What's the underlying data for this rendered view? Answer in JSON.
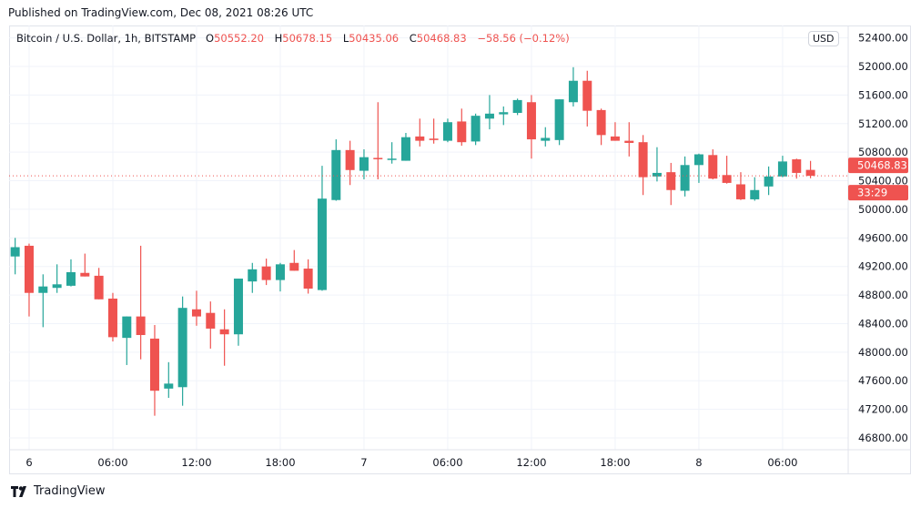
{
  "header": {
    "published": "Published on TradingView.com, Dec 08, 2021 08:26 UTC"
  },
  "legend": {
    "symbol": "Bitcoin / U.S. Dollar, 1h, BITSTAMP",
    "o_label": "O",
    "o": "50552.20",
    "h_label": "H",
    "h": "50678.15",
    "l_label": "L",
    "l": "50435.06",
    "c_label": "C",
    "c": "50468.83",
    "change": "−58.56 (−0.12%)"
  },
  "currency_badge": "USD",
  "last_price": {
    "value": "50468.83",
    "countdown": "33:29"
  },
  "footer": {
    "brand": "TradingView"
  },
  "colors": {
    "up": "#26a69a",
    "down": "#ef5350",
    "grid": "#f0f3fa",
    "text": "#131722"
  },
  "chart_data": {
    "type": "candlestick",
    "interval": "1h",
    "start": "2021-12-05T23:00:00Z",
    "xlim": [
      "2021-12-05T22:34:00Z",
      "2021-12-08T10:42:00Z"
    ],
    "ylim": [
      46634,
      52574
    ],
    "grid": true,
    "y_ticks": [
      "52400.00",
      "52000.00",
      "51600.00",
      "51200.00",
      "50800.00",
      "50400.00",
      "50000.00",
      "49600.00",
      "49200.00",
      "48800.00",
      "48400.00",
      "48000.00",
      "47600.00",
      "47200.00",
      "46800.00"
    ],
    "x_ticks": [
      {
        "label": "6",
        "time": "2021-12-06T00:00:00Z"
      },
      {
        "label": "06:00",
        "time": "2021-12-06T06:00:00Z"
      },
      {
        "label": "12:00",
        "time": "2021-12-06T12:00:00Z"
      },
      {
        "label": "18:00",
        "time": "2021-12-06T18:00:00Z"
      },
      {
        "label": "7",
        "time": "2021-12-07T00:00:00Z"
      },
      {
        "label": "06:00",
        "time": "2021-12-07T06:00:00Z"
      },
      {
        "label": "12:00",
        "time": "2021-12-07T12:00:00Z"
      },
      {
        "label": "18:00",
        "time": "2021-12-07T18:00:00Z"
      },
      {
        "label": "8",
        "time": "2021-12-08T00:00:00Z"
      },
      {
        "label": "06:00",
        "time": "2021-12-08T06:00:00Z"
      }
    ],
    "ohlc": [
      [
        49340,
        49600,
        49090,
        49470
      ],
      [
        49490,
        49520,
        48500,
        48830
      ],
      [
        48830,
        49090,
        48350,
        48920
      ],
      [
        48900,
        49230,
        48830,
        48950
      ],
      [
        48930,
        49300,
        48920,
        49120
      ],
      [
        49110,
        49380,
        49060,
        49060
      ],
      [
        49070,
        49180,
        48740,
        48740
      ],
      [
        48750,
        48830,
        48150,
        48210
      ],
      [
        48200,
        48500,
        47820,
        48500
      ],
      [
        48500,
        49490,
        47900,
        48240
      ],
      [
        48190,
        48380,
        47110,
        47460
      ],
      [
        47490,
        47860,
        47360,
        47560
      ],
      [
        47510,
        48780,
        47250,
        48620
      ],
      [
        48600,
        48860,
        48370,
        48500
      ],
      [
        48550,
        48710,
        48050,
        48330
      ],
      [
        48320,
        48600,
        47810,
        48250
      ],
      [
        48250,
        49030,
        48090,
        49030
      ],
      [
        48990,
        49250,
        48830,
        49160
      ],
      [
        49200,
        49310,
        48940,
        49010
      ],
      [
        49010,
        49250,
        48850,
        49230
      ],
      [
        49250,
        49430,
        49140,
        49140
      ],
      [
        49170,
        49300,
        48820,
        48890
      ],
      [
        48870,
        50610,
        48860,
        50150
      ],
      [
        50130,
        50980,
        50120,
        50830
      ],
      [
        50830,
        50960,
        50340,
        50550
      ],
      [
        50540,
        50840,
        50420,
        50730
      ],
      [
        50720,
        51500,
        50420,
        50710
      ],
      [
        50700,
        50940,
        50640,
        50710
      ],
      [
        50680,
        51070,
        50680,
        51010
      ],
      [
        51020,
        51270,
        50880,
        50960
      ],
      [
        50990,
        51270,
        50920,
        50970
      ],
      [
        50960,
        51270,
        50940,
        51220
      ],
      [
        51230,
        51410,
        50890,
        50940
      ],
      [
        50950,
        51340,
        50900,
        51310
      ],
      [
        51270,
        51600,
        51120,
        51340
      ],
      [
        51330,
        51440,
        51180,
        51360
      ],
      [
        51350,
        51550,
        51320,
        51530
      ],
      [
        51500,
        51600,
        50710,
        50980
      ],
      [
        50960,
        51150,
        50880,
        51000
      ],
      [
        50970,
        51540,
        50900,
        51540
      ],
      [
        51500,
        51990,
        51440,
        51800
      ],
      [
        51800,
        51940,
        51160,
        51380
      ],
      [
        51390,
        51410,
        50900,
        51040
      ],
      [
        51020,
        51220,
        50960,
        50960
      ],
      [
        50960,
        51220,
        50740,
        50930
      ],
      [
        50940,
        51040,
        50200,
        50450
      ],
      [
        50460,
        50870,
        50390,
        50510
      ],
      [
        50520,
        50650,
        50060,
        50270
      ],
      [
        50260,
        50740,
        50180,
        50620
      ],
      [
        50620,
        50780,
        50370,
        50770
      ],
      [
        50760,
        50840,
        50420,
        50430
      ],
      [
        50480,
        50750,
        50360,
        50370
      ],
      [
        50350,
        50520,
        50130,
        50140
      ],
      [
        50140,
        50450,
        50120,
        50270
      ],
      [
        50320,
        50600,
        50200,
        50460
      ],
      [
        50460,
        50750,
        50450,
        50670
      ],
      [
        50700,
        50710,
        50430,
        50510
      ],
      [
        50552.2,
        50678.15,
        50435.06,
        50468.83
      ]
    ],
    "last": 50468.83
  }
}
